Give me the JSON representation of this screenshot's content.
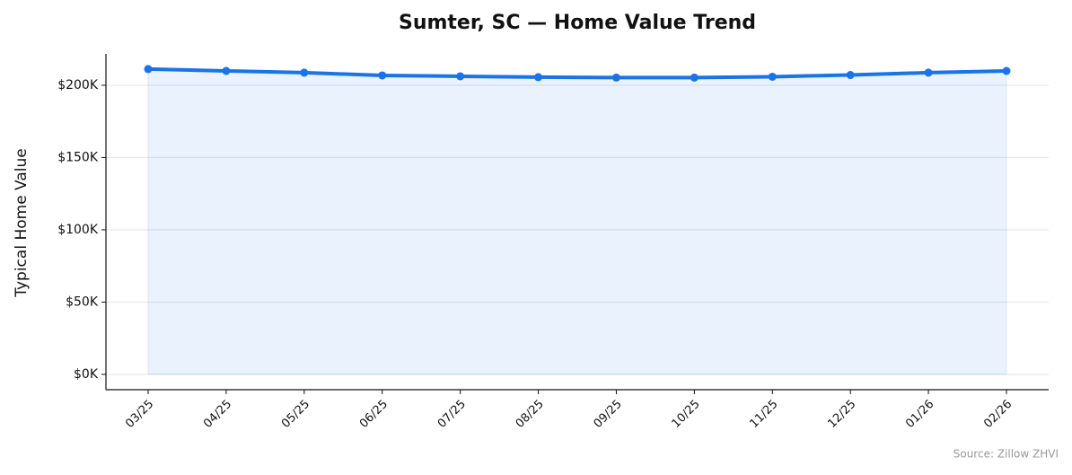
{
  "chart_data": {
    "type": "line",
    "title": "Sumter, SC — Home Value Trend",
    "y_label": "Typical Home Value",
    "source": "Source: Zillow ZHVI",
    "categories": [
      "03/25",
      "04/25",
      "05/25",
      "06/25",
      "07/25",
      "08/25",
      "09/25",
      "10/25",
      "11/25",
      "12/25",
      "01/26",
      "02/26"
    ],
    "series": [
      {
        "name": "Typical Home Value",
        "color": "#1a73e8",
        "values": [
          211200,
          209900,
          208700,
          206800,
          206200,
          205600,
          205300,
          205300,
          205900,
          207100,
          208700,
          209900
        ]
      }
    ],
    "fill_area": true,
    "ylim": [
      -10600,
      221700
    ],
    "yticks": [
      {
        "value": 0,
        "label": "$0K"
      },
      {
        "value": 50000,
        "label": "$50K"
      },
      {
        "value": 100000,
        "label": "$100K"
      },
      {
        "value": 150000,
        "label": "$150K"
      },
      {
        "value": 200000,
        "label": "$200K"
      }
    ],
    "grid": true
  }
}
